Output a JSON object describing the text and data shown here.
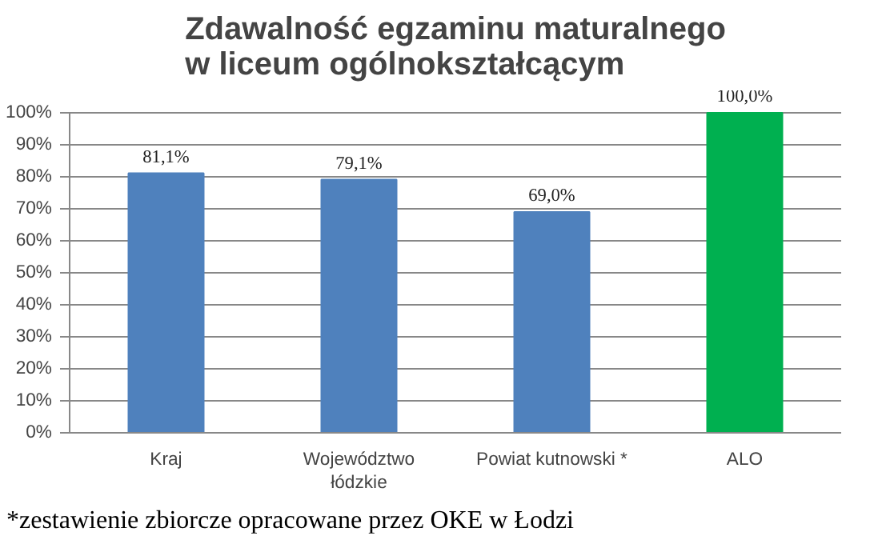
{
  "chart_data": {
    "type": "bar",
    "title": "Zdawalność egzaminu maturalnego\nw liceum ogólnokształcącym",
    "categories": [
      "Kraj",
      "Województwo\nłódzkie",
      "Powiat kutnowski *",
      "ALO"
    ],
    "values": [
      81.1,
      79.1,
      69.0,
      100.0
    ],
    "colors": [
      "#4f81bd",
      "#4f81bd",
      "#4f81bd",
      "#00b050"
    ],
    "value_labels": [
      "81,1%",
      "79,1%",
      "69,0%",
      "100,0%"
    ],
    "ylim": [
      0,
      100
    ],
    "yticks": [
      {
        "value": 0,
        "label": "0%"
      },
      {
        "value": 10,
        "label": "10%"
      },
      {
        "value": 20,
        "label": "20%"
      },
      {
        "value": 30,
        "label": "30%"
      },
      {
        "value": 40,
        "label": "40%"
      },
      {
        "value": 50,
        "label": "50%"
      },
      {
        "value": 60,
        "label": "60%"
      },
      {
        "value": 70,
        "label": "70%"
      },
      {
        "value": 80,
        "label": "80%"
      },
      {
        "value": 90,
        "label": "90%"
      },
      {
        "value": 100,
        "label": "100%"
      }
    ],
    "grid": "y",
    "annotations": [
      "*zestawienie zbiorcze opracowane przez OKE w Łodzi"
    ]
  }
}
